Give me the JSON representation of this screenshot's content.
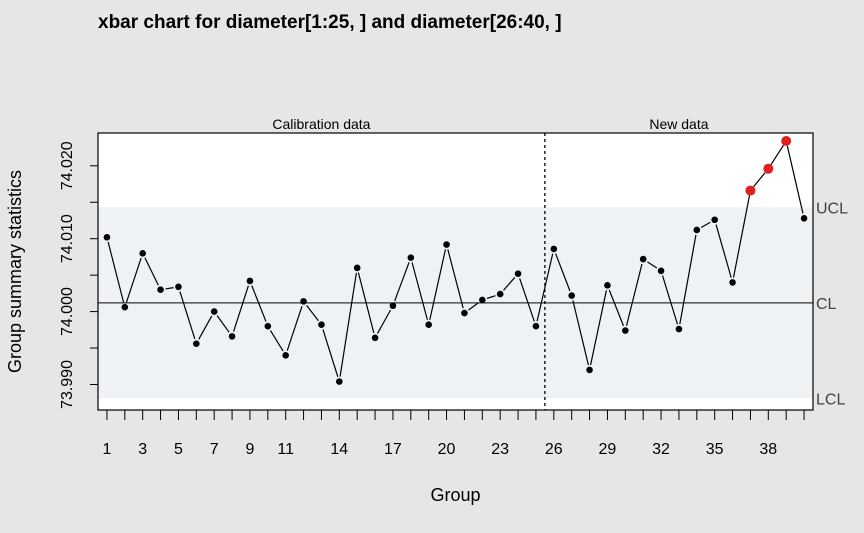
{
  "chart_data": {
    "type": "line",
    "title": "xbar chart for diameter[1:25, ] and diameter[26:40, ]",
    "xlabel": "Group",
    "ylabel": "Group summary statistics",
    "sections": [
      "Calibration data",
      "New data"
    ],
    "x_tick_labels": [
      "1",
      "3",
      "5",
      "7",
      "9",
      "11",
      "14",
      "17",
      "20",
      "23",
      "26",
      "29",
      "32",
      "35",
      "38"
    ],
    "y_tick_labels": [
      "73.990",
      "74.000",
      "74.010",
      "74.020"
    ],
    "y_ticks": [
      73.99,
      73.995,
      74.0,
      74.005,
      74.01,
      74.015,
      74.02
    ],
    "xlim": [
      0.5,
      40.5
    ],
    "ylim": [
      73.9865,
      74.0245
    ],
    "limits": {
      "UCL": {
        "label": "UCL",
        "value": 74.0143
      },
      "CL": {
        "label": "CL",
        "value": 74.0012
      },
      "LCL": {
        "label": "LCL",
        "value": 73.9881
      }
    },
    "split_after_group": 25,
    "series": [
      {
        "x": [
          1,
          2,
          3,
          4,
          5,
          6,
          7,
          8,
          9,
          10,
          11,
          12,
          13,
          14,
          15,
          16,
          17,
          18,
          19,
          20,
          21,
          22,
          23,
          24,
          25,
          26,
          27,
          28,
          29,
          30,
          31,
          32,
          33,
          34,
          35,
          36,
          37,
          38,
          39,
          40
        ],
        "values": [
          74.0102,
          74.0006,
          74.008,
          74.003,
          74.0034,
          73.9956,
          74.0,
          73.9966,
          74.0042,
          73.998,
          73.994,
          74.0014,
          73.9982,
          73.9904,
          74.006,
          73.9964,
          74.0008,
          74.0074,
          73.9982,
          74.0092,
          73.9998,
          74.0016,
          74.0024,
          74.0052,
          73.998,
          74.0086,
          74.0022,
          73.992,
          74.0036,
          73.9974,
          74.0072,
          74.0056,
          73.9976,
          74.0112,
          74.0126,
          74.004,
          74.0166,
          74.0196,
          74.0234,
          74.0128
        ],
        "out_of_control": [
          37,
          38,
          39
        ],
        "color": "#000000",
        "violation_color": "#e02020"
      }
    ],
    "colors": {
      "background": "#e6e6e6",
      "plot_area": "#ffffff",
      "control_band": "#eff2f5",
      "violation": "#e02020"
    }
  }
}
